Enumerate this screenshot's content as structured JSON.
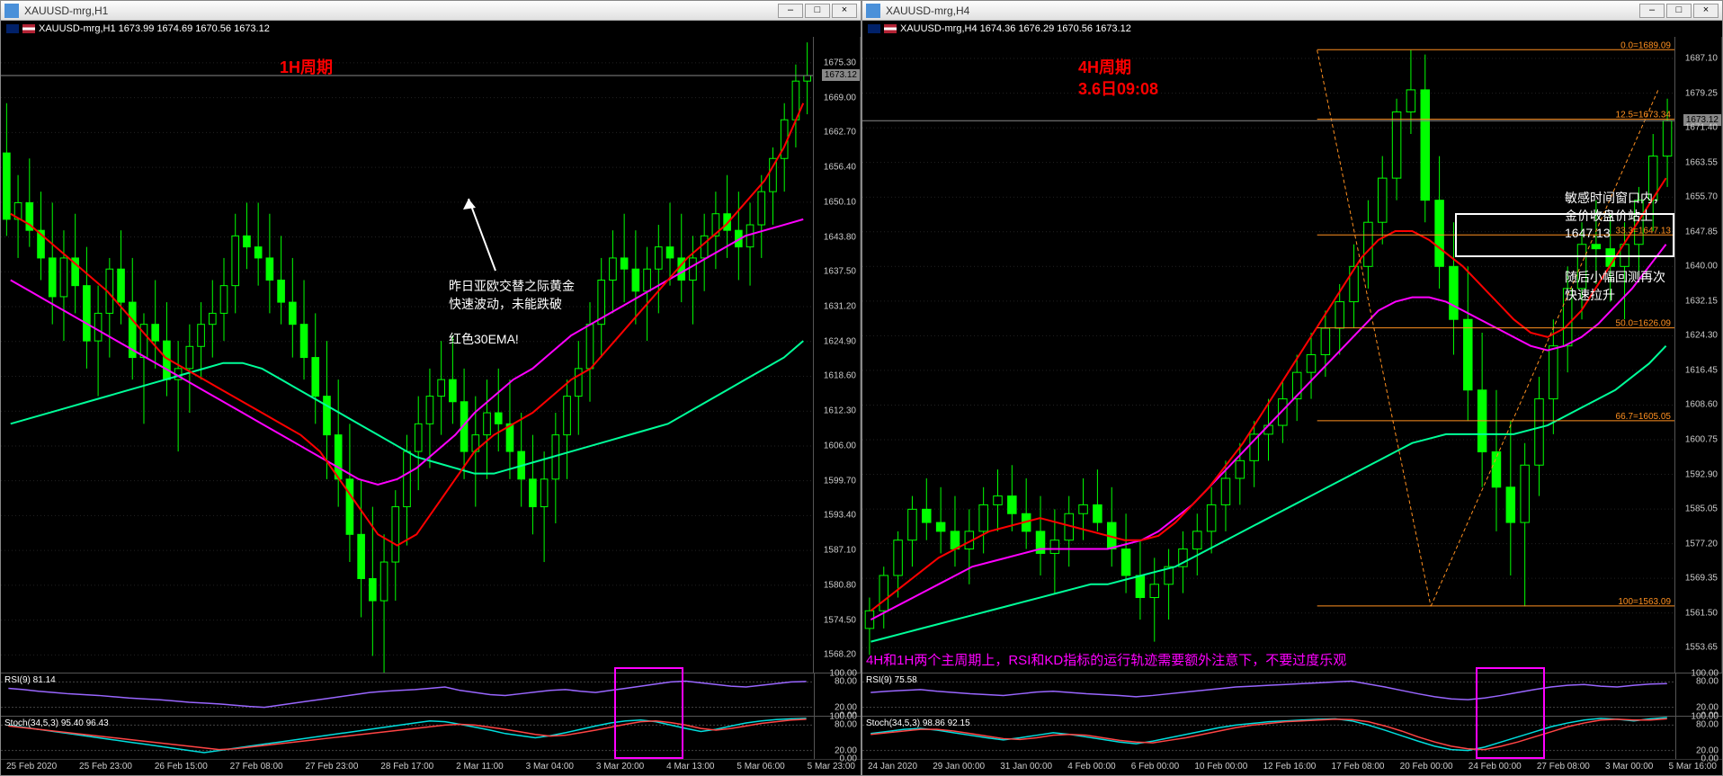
{
  "left": {
    "title": "XAUUSD-mrg,H1",
    "ohlc": "XAUUSD-mrg,H1  1673.99 1674.69 1670.56 1673.12",
    "period_label": "1H周期",
    "comment1": "昨日亚欧交替之际黄金",
    "comment2": "快速波动，未能跌破",
    "comment3": "红色30EMA!",
    "rsi_label": "RSI(9) 81.14",
    "stoch_label": "Stoch(34,5,3) 95.40 96.43",
    "price_tag": "1673.12",
    "y_ticks": [
      "1675.30",
      "1669.00",
      "1662.70",
      "1656.40",
      "1650.10",
      "1643.80",
      "1637.50",
      "1631.20",
      "1624.90",
      "1618.60",
      "1612.30",
      "1606.00",
      "1599.70",
      "1593.40",
      "1587.10",
      "1580.80",
      "1574.50",
      "1568.20"
    ],
    "x_ticks": [
      "25 Feb 2020",
      "25 Feb 23:00",
      "26 Feb 15:00",
      "27 Feb 08:00",
      "27 Feb 23:00",
      "28 Feb 17:00",
      "2 Mar 11:00",
      "3 Mar 04:00",
      "3 Mar 20:00",
      "4 Mar 13:00",
      "5 Mar 06:00",
      "5 Mar 23:00"
    ],
    "colors": {
      "ema30": "#ff0000",
      "ema_long": "#00ff99",
      "ma_mid": "#ff00ff",
      "candle_up": "#00ff00",
      "candle_dn": "#00ff00",
      "bg": "#000000"
    },
    "ylim": [
      1565,
      1680
    ],
    "candles": [
      [
        1659,
        1668,
        1644,
        1647
      ],
      [
        1647,
        1655,
        1640,
        1650
      ],
      [
        1650,
        1658,
        1642,
        1645
      ],
      [
        1645,
        1652,
        1636,
        1640
      ],
      [
        1640,
        1650,
        1628,
        1633
      ],
      [
        1633,
        1645,
        1625,
        1640
      ],
      [
        1640,
        1648,
        1630,
        1635
      ],
      [
        1635,
        1642,
        1620,
        1625
      ],
      [
        1625,
        1635,
        1615,
        1630
      ],
      [
        1630,
        1640,
        1622,
        1638
      ],
      [
        1638,
        1645,
        1628,
        1632
      ],
      [
        1632,
        1640,
        1618,
        1622
      ],
      [
        1622,
        1630,
        1610,
        1628
      ],
      [
        1628,
        1636,
        1620,
        1625
      ],
      [
        1625,
        1632,
        1615,
        1618
      ],
      [
        1618,
        1625,
        1605,
        1620
      ],
      [
        1620,
        1628,
        1612,
        1624
      ],
      [
        1624,
        1632,
        1618,
        1628
      ],
      [
        1628,
        1636,
        1622,
        1630
      ],
      [
        1630,
        1640,
        1625,
        1635
      ],
      [
        1635,
        1648,
        1630,
        1644
      ],
      [
        1644,
        1650,
        1638,
        1642
      ],
      [
        1642,
        1650,
        1635,
        1640
      ],
      [
        1640,
        1648,
        1630,
        1636
      ],
      [
        1636,
        1644,
        1628,
        1632
      ],
      [
        1632,
        1640,
        1622,
        1628
      ],
      [
        1628,
        1636,
        1618,
        1622
      ],
      [
        1622,
        1630,
        1610,
        1615
      ],
      [
        1615,
        1625,
        1600,
        1608
      ],
      [
        1608,
        1618,
        1595,
        1600
      ],
      [
        1600,
        1610,
        1585,
        1590
      ],
      [
        1590,
        1600,
        1575,
        1582
      ],
      [
        1582,
        1595,
        1568,
        1578
      ],
      [
        1578,
        1590,
        1565,
        1585
      ],
      [
        1585,
        1598,
        1578,
        1595
      ],
      [
        1595,
        1608,
        1588,
        1605
      ],
      [
        1605,
        1615,
        1598,
        1610
      ],
      [
        1610,
        1620,
        1602,
        1615
      ],
      [
        1615,
        1625,
        1608,
        1618
      ],
      [
        1618,
        1626,
        1610,
        1614
      ],
      [
        1614,
        1620,
        1600,
        1605
      ],
      [
        1605,
        1615,
        1595,
        1608
      ],
      [
        1608,
        1618,
        1600,
        1612
      ],
      [
        1612,
        1620,
        1605,
        1610
      ],
      [
        1610,
        1618,
        1600,
        1605
      ],
      [
        1605,
        1612,
        1595,
        1600
      ],
      [
        1600,
        1608,
        1590,
        1595
      ],
      [
        1595,
        1605,
        1585,
        1600
      ],
      [
        1600,
        1612,
        1592,
        1608
      ],
      [
        1608,
        1618,
        1600,
        1615
      ],
      [
        1615,
        1625,
        1608,
        1620
      ],
      [
        1620,
        1632,
        1614,
        1628
      ],
      [
        1628,
        1640,
        1622,
        1636
      ],
      [
        1636,
        1645,
        1630,
        1640
      ],
      [
        1640,
        1648,
        1632,
        1638
      ],
      [
        1638,
        1645,
        1628,
        1634
      ],
      [
        1634,
        1642,
        1625,
        1638
      ],
      [
        1638,
        1646,
        1630,
        1642
      ],
      [
        1642,
        1650,
        1635,
        1640
      ],
      [
        1640,
        1648,
        1632,
        1636
      ],
      [
        1636,
        1644,
        1628,
        1640
      ],
      [
        1640,
        1648,
        1634,
        1644
      ],
      [
        1644,
        1652,
        1638,
        1648
      ],
      [
        1648,
        1655,
        1640,
        1645
      ],
      [
        1645,
        1652,
        1636,
        1642
      ],
      [
        1642,
        1650,
        1635,
        1646
      ],
      [
        1646,
        1655,
        1640,
        1652
      ],
      [
        1652,
        1660,
        1646,
        1658
      ],
      [
        1658,
        1668,
        1652,
        1665
      ],
      [
        1665,
        1675,
        1660,
        1672
      ],
      [
        1672,
        1679,
        1666,
        1673
      ]
    ],
    "ema30_pts": [
      1648,
      1646,
      1643,
      1640,
      1637,
      1634,
      1630,
      1626,
      1622,
      1620,
      1618,
      1616,
      1614,
      1612,
      1610,
      1608,
      1605,
      1600,
      1595,
      1590,
      1588,
      1590,
      1595,
      1600,
      1605,
      1608,
      1610,
      1612,
      1615,
      1618,
      1620,
      1624,
      1628,
      1632,
      1636,
      1640,
      1643,
      1646,
      1650,
      1654,
      1660,
      1668
    ],
    "ema_long_pts": [
      1610,
      1611,
      1612,
      1613,
      1614,
      1615,
      1616,
      1617,
      1618,
      1619,
      1620,
      1621,
      1621,
      1620,
      1618,
      1616,
      1614,
      1612,
      1610,
      1608,
      1606,
      1604,
      1603,
      1602,
      1601,
      1601,
      1602,
      1603,
      1604,
      1605,
      1606,
      1607,
      1608,
      1609,
      1610,
      1612,
      1614,
      1616,
      1618,
      1620,
      1622,
      1625
    ],
    "ma_mid_pts": [
      1636,
      1634,
      1632,
      1630,
      1628,
      1626,
      1624,
      1622,
      1620,
      1618,
      1616,
      1614,
      1612,
      1610,
      1608,
      1606,
      1604,
      1602,
      1600,
      1599,
      1600,
      1602,
      1605,
      1608,
      1612,
      1615,
      1618,
      1620,
      1623,
      1626,
      1628,
      1630,
      1632,
      1634,
      1636,
      1638,
      1640,
      1642,
      1644,
      1645,
      1646,
      1647
    ],
    "rsi_pts": [
      65,
      62,
      58,
      55,
      52,
      50,
      48,
      45,
      42,
      40,
      38,
      35,
      32,
      30,
      28,
      25,
      22,
      20,
      25,
      30,
      35,
      40,
      45,
      50,
      55,
      58,
      60,
      62,
      65,
      68,
      60,
      55,
      50,
      48,
      52,
      56,
      60,
      62,
      58,
      55,
      60,
      65,
      70,
      75,
      80,
      82,
      78,
      74,
      70,
      68,
      72,
      76,
      80,
      81
    ],
    "stoch_k": [
      80,
      75,
      70,
      65,
      60,
      55,
      50,
      45,
      40,
      35,
      30,
      25,
      20,
      15,
      20,
      25,
      30,
      35,
      40,
      45,
      50,
      55,
      60,
      65,
      70,
      75,
      80,
      85,
      90,
      88,
      82,
      75,
      68,
      60,
      55,
      50,
      55,
      62,
      70,
      78,
      85,
      90,
      92,
      88,
      80,
      72,
      65,
      70,
      78,
      85,
      90,
      93,
      95,
      96
    ],
    "stoch_d": [
      78,
      74,
      70,
      66,
      62,
      58,
      54,
      50,
      46,
      42,
      38,
      34,
      30,
      26,
      22,
      24,
      28,
      32,
      36,
      40,
      44,
      48,
      52,
      56,
      60,
      64,
      68,
      72,
      76,
      80,
      82,
      80,
      75,
      70,
      64,
      58,
      54,
      56,
      62,
      68,
      75,
      82,
      88,
      90,
      86,
      80,
      72,
      68,
      72,
      78,
      84,
      88,
      92,
      94
    ]
  },
  "right": {
    "title": "XAUUSD-mrg,H4",
    "ohlc": "XAUUSD-mrg,H4  1674.36 1676.29 1670.56 1673.12",
    "period_label": "4H周期",
    "date_label": "3.6日09:08",
    "comment1": "敏感时间窗口内，",
    "comment2": "金价收盘价站上",
    "comment3": "1647.13",
    "comment4": "随后小幅回测再次",
    "comment5": "快速拉升",
    "bottom_note": "4H和1H两个主周期上，RSI和KD指标的运行轨迹需要额外注意下，不要过度乐观",
    "rsi_label": "RSI(9) 75.58",
    "stoch_label": "Stoch(34,5,3) 98.86 92.15",
    "price_tag": "1673.12",
    "fib_labels": {
      "f0": "0.0=1689.09",
      "f12": "12.5=1673.34",
      "f33": "33.3=1647.13",
      "f50": "50.0=1626.09",
      "f66": "66.7=1605.05",
      "f100": "100=1563.09"
    },
    "y_ticks": [
      "1687.10",
      "1679.25",
      "1671.40",
      "1663.55",
      "1655.70",
      "1647.85",
      "1640.00",
      "1632.15",
      "1624.30",
      "1616.45",
      "1608.60",
      "1600.75",
      "1592.90",
      "1585.05",
      "1577.20",
      "1569.35",
      "1561.50",
      "1553.65"
    ],
    "x_ticks": [
      "24 Jan 2020",
      "29 Jan 00:00",
      "31 Jan 00:00",
      "4 Feb 00:00",
      "6 Feb 00:00",
      "10 Feb 00:00",
      "12 Feb 16:00",
      "17 Feb 08:00",
      "20 Feb 00:00",
      "24 Feb 00:00",
      "27 Feb 08:00",
      "3 Mar 00:00",
      "5 Mar 16:00"
    ],
    "colors": {
      "ema30": "#ff0000",
      "ema_long": "#00ff99",
      "ma_mid": "#ff00ff",
      "fib": "#ff9020"
    },
    "ylim": [
      1548,
      1692
    ],
    "candles": [
      [
        1558,
        1565,
        1552,
        1562
      ],
      [
        1562,
        1572,
        1558,
        1570
      ],
      [
        1570,
        1580,
        1565,
        1578
      ],
      [
        1578,
        1588,
        1572,
        1585
      ],
      [
        1585,
        1592,
        1578,
        1582
      ],
      [
        1582,
        1590,
        1575,
        1580
      ],
      [
        1580,
        1588,
        1572,
        1576
      ],
      [
        1576,
        1585,
        1568,
        1580
      ],
      [
        1580,
        1590,
        1575,
        1586
      ],
      [
        1586,
        1594,
        1580,
        1588
      ],
      [
        1588,
        1595,
        1580,
        1584
      ],
      [
        1584,
        1592,
        1576,
        1580
      ],
      [
        1580,
        1588,
        1570,
        1575
      ],
      [
        1575,
        1585,
        1566,
        1578
      ],
      [
        1578,
        1588,
        1572,
        1584
      ],
      [
        1584,
        1592,
        1578,
        1586
      ],
      [
        1586,
        1594,
        1580,
        1582
      ],
      [
        1582,
        1590,
        1572,
        1576
      ],
      [
        1576,
        1584,
        1566,
        1570
      ],
      [
        1570,
        1578,
        1560,
        1565
      ],
      [
        1565,
        1574,
        1555,
        1568
      ],
      [
        1568,
        1576,
        1560,
        1572
      ],
      [
        1572,
        1580,
        1566,
        1576
      ],
      [
        1576,
        1584,
        1570,
        1580
      ],
      [
        1580,
        1590,
        1575,
        1586
      ],
      [
        1586,
        1596,
        1580,
        1592
      ],
      [
        1592,
        1600,
        1586,
        1596
      ],
      [
        1596,
        1605,
        1590,
        1602
      ],
      [
        1602,
        1610,
        1596,
        1604
      ],
      [
        1604,
        1614,
        1600,
        1610
      ],
      [
        1610,
        1620,
        1605,
        1616
      ],
      [
        1616,
        1625,
        1610,
        1620
      ],
      [
        1620,
        1630,
        1615,
        1626
      ],
      [
        1626,
        1636,
        1620,
        1632
      ],
      [
        1632,
        1645,
        1626,
        1640
      ],
      [
        1640,
        1655,
        1635,
        1650
      ],
      [
        1650,
        1665,
        1645,
        1660
      ],
      [
        1660,
        1678,
        1655,
        1675
      ],
      [
        1675,
        1689,
        1670,
        1680
      ],
      [
        1680,
        1688,
        1650,
        1655
      ],
      [
        1655,
        1665,
        1635,
        1640
      ],
      [
        1640,
        1650,
        1620,
        1628
      ],
      [
        1628,
        1640,
        1605,
        1612
      ],
      [
        1612,
        1625,
        1590,
        1598
      ],
      [
        1598,
        1612,
        1580,
        1590
      ],
      [
        1590,
        1605,
        1570,
        1582
      ],
      [
        1582,
        1600,
        1563,
        1595
      ],
      [
        1595,
        1615,
        1588,
        1610
      ],
      [
        1610,
        1628,
        1602,
        1622
      ],
      [
        1622,
        1640,
        1616,
        1635
      ],
      [
        1635,
        1650,
        1628,
        1645
      ],
      [
        1645,
        1655,
        1636,
        1644
      ],
      [
        1644,
        1652,
        1632,
        1640
      ],
      [
        1640,
        1650,
        1628,
        1645
      ],
      [
        1645,
        1658,
        1638,
        1655
      ],
      [
        1655,
        1670,
        1648,
        1665
      ],
      [
        1665,
        1678,
        1658,
        1673
      ]
    ],
    "ema30_pts": [
      1562,
      1565,
      1568,
      1571,
      1574,
      1576,
      1578,
      1580,
      1581,
      1582,
      1583,
      1582,
      1581,
      1580,
      1579,
      1578,
      1578,
      1579,
      1582,
      1586,
      1590,
      1595,
      1600,
      1606,
      1612,
      1618,
      1624,
      1630,
      1636,
      1642,
      1646,
      1648,
      1648,
      1646,
      1643,
      1640,
      1636,
      1632,
      1628,
      1625,
      1624,
      1626,
      1630,
      1636,
      1642,
      1648,
      1654,
      1660
    ],
    "ema_long_pts": [
      1555,
      1556,
      1557,
      1558,
      1559,
      1560,
      1561,
      1562,
      1563,
      1564,
      1565,
      1566,
      1567,
      1568,
      1568,
      1569,
      1570,
      1571,
      1572,
      1574,
      1576,
      1578,
      1580,
      1582,
      1584,
      1586,
      1588,
      1590,
      1592,
      1594,
      1596,
      1598,
      1600,
      1601,
      1602,
      1602,
      1602,
      1602,
      1602,
      1603,
      1604,
      1606,
      1608,
      1610,
      1612,
      1615,
      1618,
      1622
    ],
    "ma_mid_pts": [
      1560,
      1562,
      1564,
      1566,
      1568,
      1570,
      1572,
      1573,
      1574,
      1575,
      1576,
      1576,
      1576,
      1576,
      1576,
      1577,
      1578,
      1580,
      1583,
      1586,
      1590,
      1594,
      1598,
      1602,
      1606,
      1610,
      1614,
      1618,
      1622,
      1626,
      1630,
      1632,
      1633,
      1633,
      1632,
      1630,
      1628,
      1626,
      1624,
      1622,
      1621,
      1622,
      1624,
      1627,
      1631,
      1635,
      1640,
      1645
    ],
    "rsi_pts": [
      55,
      58,
      60,
      62,
      58,
      55,
      52,
      50,
      48,
      52,
      56,
      58,
      55,
      52,
      50,
      48,
      45,
      48,
      52,
      56,
      60,
      64,
      68,
      70,
      72,
      74,
      76,
      78,
      80,
      82,
      75,
      68,
      60,
      52,
      45,
      40,
      38,
      42,
      48,
      55,
      62,
      68,
      72,
      74,
      70,
      68,
      72,
      75,
      76
    ],
    "stoch_k": [
      60,
      65,
      70,
      72,
      68,
      62,
      56,
      50,
      45,
      50,
      56,
      62,
      58,
      52,
      46,
      40,
      36,
      42,
      50,
      58,
      66,
      74,
      80,
      84,
      88,
      90,
      92,
      94,
      95,
      90,
      80,
      68,
      55,
      42,
      30,
      22,
      20,
      28,
      40,
      52,
      64,
      76,
      85,
      92,
      96,
      94,
      90,
      95,
      98
    ],
    "stoch_d": [
      58,
      62,
      66,
      70,
      70,
      66,
      60,
      54,
      48,
      46,
      50,
      56,
      58,
      56,
      50,
      44,
      40,
      38,
      44,
      50,
      58,
      66,
      74,
      80,
      84,
      88,
      90,
      92,
      94,
      93,
      88,
      78,
      66,
      52,
      40,
      30,
      24,
      22,
      30,
      40,
      52,
      64,
      76,
      85,
      92,
      94,
      92,
      92,
      95
    ],
    "fib_levels": [
      1689.09,
      1673.34,
      1647.13,
      1626.09,
      1605.05,
      1563.09
    ]
  },
  "rsi_yticks": [
    "100.00",
    "80.00",
    "20.00",
    "0.00"
  ],
  "stoch_yticks": [
    "100.00",
    "80.00",
    "20.00",
    "0.00"
  ]
}
